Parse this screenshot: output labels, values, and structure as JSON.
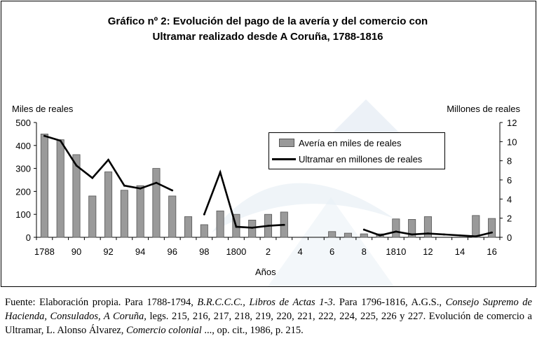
{
  "title": {
    "line1": "Gráfico nº 2: Evolución del pago de la avería y del comercio con",
    "line2": "Ultramar realizado desde A Coruña, 1788-1816"
  },
  "axes": {
    "left_label": "Miles de reales",
    "right_label": "Millones de reales",
    "x_label": "Años"
  },
  "legend": {
    "bar_label": "Avería en miles de reales",
    "line_label": "Ultramar en millones de reales"
  },
  "chart_data": {
    "type": "bar+line",
    "title": "Gráfico nº 2: Evolución del pago de la avería y del comercio con Ultramar realizado desde A Coruña, 1788-1816",
    "xlabel": "Años",
    "ylabel_left": "Miles de reales",
    "ylabel_right": "Millones de reales",
    "y_left_lim": [
      0,
      500
    ],
    "y_left_ticks": [
      "0",
      "100",
      "200",
      "300",
      "400",
      "500"
    ],
    "y_right_lim": [
      0,
      12
    ],
    "y_right_ticks": [
      "0",
      "2",
      "4",
      "6",
      "8",
      "10",
      "12"
    ],
    "x_ticks": [
      {
        "year": 1788,
        "label": "1788"
      },
      {
        "year": 1790,
        "label": "90"
      },
      {
        "year": 1792,
        "label": "92"
      },
      {
        "year": 1794,
        "label": "94"
      },
      {
        "year": 1796,
        "label": "96"
      },
      {
        "year": 1798,
        "label": "98"
      },
      {
        "year": 1800,
        "label": "1800"
      },
      {
        "year": 1802,
        "label": "2"
      },
      {
        "year": 1804,
        "label": "4"
      },
      {
        "year": 1806,
        "label": "6"
      },
      {
        "year": 1808,
        "label": "8"
      },
      {
        "year": 1810,
        "label": "1810"
      },
      {
        "year": 1812,
        "label": "12"
      },
      {
        "year": 1814,
        "label": "14"
      },
      {
        "year": 1816,
        "label": "16"
      }
    ],
    "series": [
      {
        "name": "Avería en miles de reales",
        "kind": "bar",
        "axis": "left",
        "years": [
          1788,
          1789,
          1790,
          1791,
          1792,
          1793,
          1794,
          1795,
          1796,
          1797,
          1798,
          1799,
          1800,
          1801,
          1802,
          1803,
          1806,
          1807,
          1808,
          1809,
          1810,
          1811,
          1812,
          1815,
          1816
        ],
        "values": [
          450,
          425,
          360,
          180,
          285,
          205,
          225,
          300,
          180,
          90,
          55,
          115,
          100,
          75,
          100,
          110,
          25,
          18,
          15,
          15,
          80,
          78,
          90,
          95,
          82
        ]
      },
      {
        "name": "Ultramar en millones de reales",
        "kind": "line",
        "axis": "right",
        "segments": [
          {
            "years": [
              1788,
              1789,
              1790,
              1791,
              1792,
              1793,
              1794,
              1795,
              1796
            ],
            "values": [
              10.6,
              10.1,
              7.5,
              6.2,
              8.1,
              5.4,
              5.1,
              5.7,
              4.9
            ]
          },
          {
            "years": [
              1798,
              1799,
              1800,
              1801,
              1802,
              1803
            ],
            "values": [
              2.4,
              6.8,
              1.1,
              1.0,
              1.2,
              1.3
            ]
          },
          {
            "years": [
              1808,
              1809,
              1810,
              1811,
              1812,
              1813,
              1814,
              1815,
              1816
            ],
            "values": [
              0.8,
              0.2,
              0.6,
              0.3,
              0.4,
              0.3,
              0.2,
              0.1,
              0.5
            ]
          }
        ]
      }
    ]
  },
  "caption": {
    "source_label": "Fuente: Elaboración propia. Para 1788-1794, ",
    "source_1": "B.R.C.C.C., Libros de Actas 1-3",
    "mid_1": ". Para 1796-1816, A.G.S., ",
    "source_2": "Consejo Supremo de Hacienda, Consulados, A Coruña,",
    "mid_2": " legs. 215, 216, 217, 218, 219, 220, 221, 222, 224, 225, 226 y 227.",
    "line2_start": "Evolución de comercio a Ultramar, L. Alonso Álvarez, ",
    "source_3": "Comercio colonial",
    "line2_end": " ..., op. cit., 1986, p. 215."
  }
}
